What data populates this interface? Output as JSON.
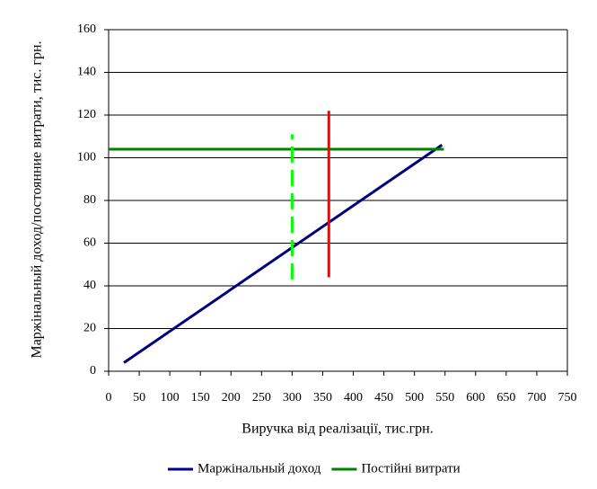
{
  "chart_data": {
    "type": "line",
    "xlabel": "Виручка від реалізації, тис.грн.",
    "ylabel": "Маржінальный доход/постоянние витрати, тис. грн.",
    "xlim": [
      0,
      750
    ],
    "xticks": [
      0,
      50,
      100,
      150,
      200,
      250,
      300,
      350,
      400,
      450,
      500,
      550,
      600,
      650,
      700,
      750
    ],
    "ylim": [
      0,
      160
    ],
    "yticks": [
      0,
      20,
      40,
      60,
      80,
      100,
      120,
      140,
      160
    ],
    "grid": true,
    "legend": "bottom",
    "series": [
      {
        "name": "Маржінальный доход",
        "color": "#000080",
        "x": [
          25,
          545
        ],
        "values": [
          4,
          106
        ]
      },
      {
        "name": "Постійні витрати",
        "color": "#008000",
        "x": [
          0,
          548
        ],
        "values": [
          104,
          104
        ]
      }
    ],
    "lines": [
      {
        "color": "#ff0000",
        "dashed": false,
        "x": [
          360,
          360
        ],
        "values": [
          44,
          122
        ]
      },
      {
        "color": "#00ff00",
        "dashed": true,
        "x": [
          300,
          300
        ],
        "values": [
          43,
          111
        ]
      }
    ]
  }
}
